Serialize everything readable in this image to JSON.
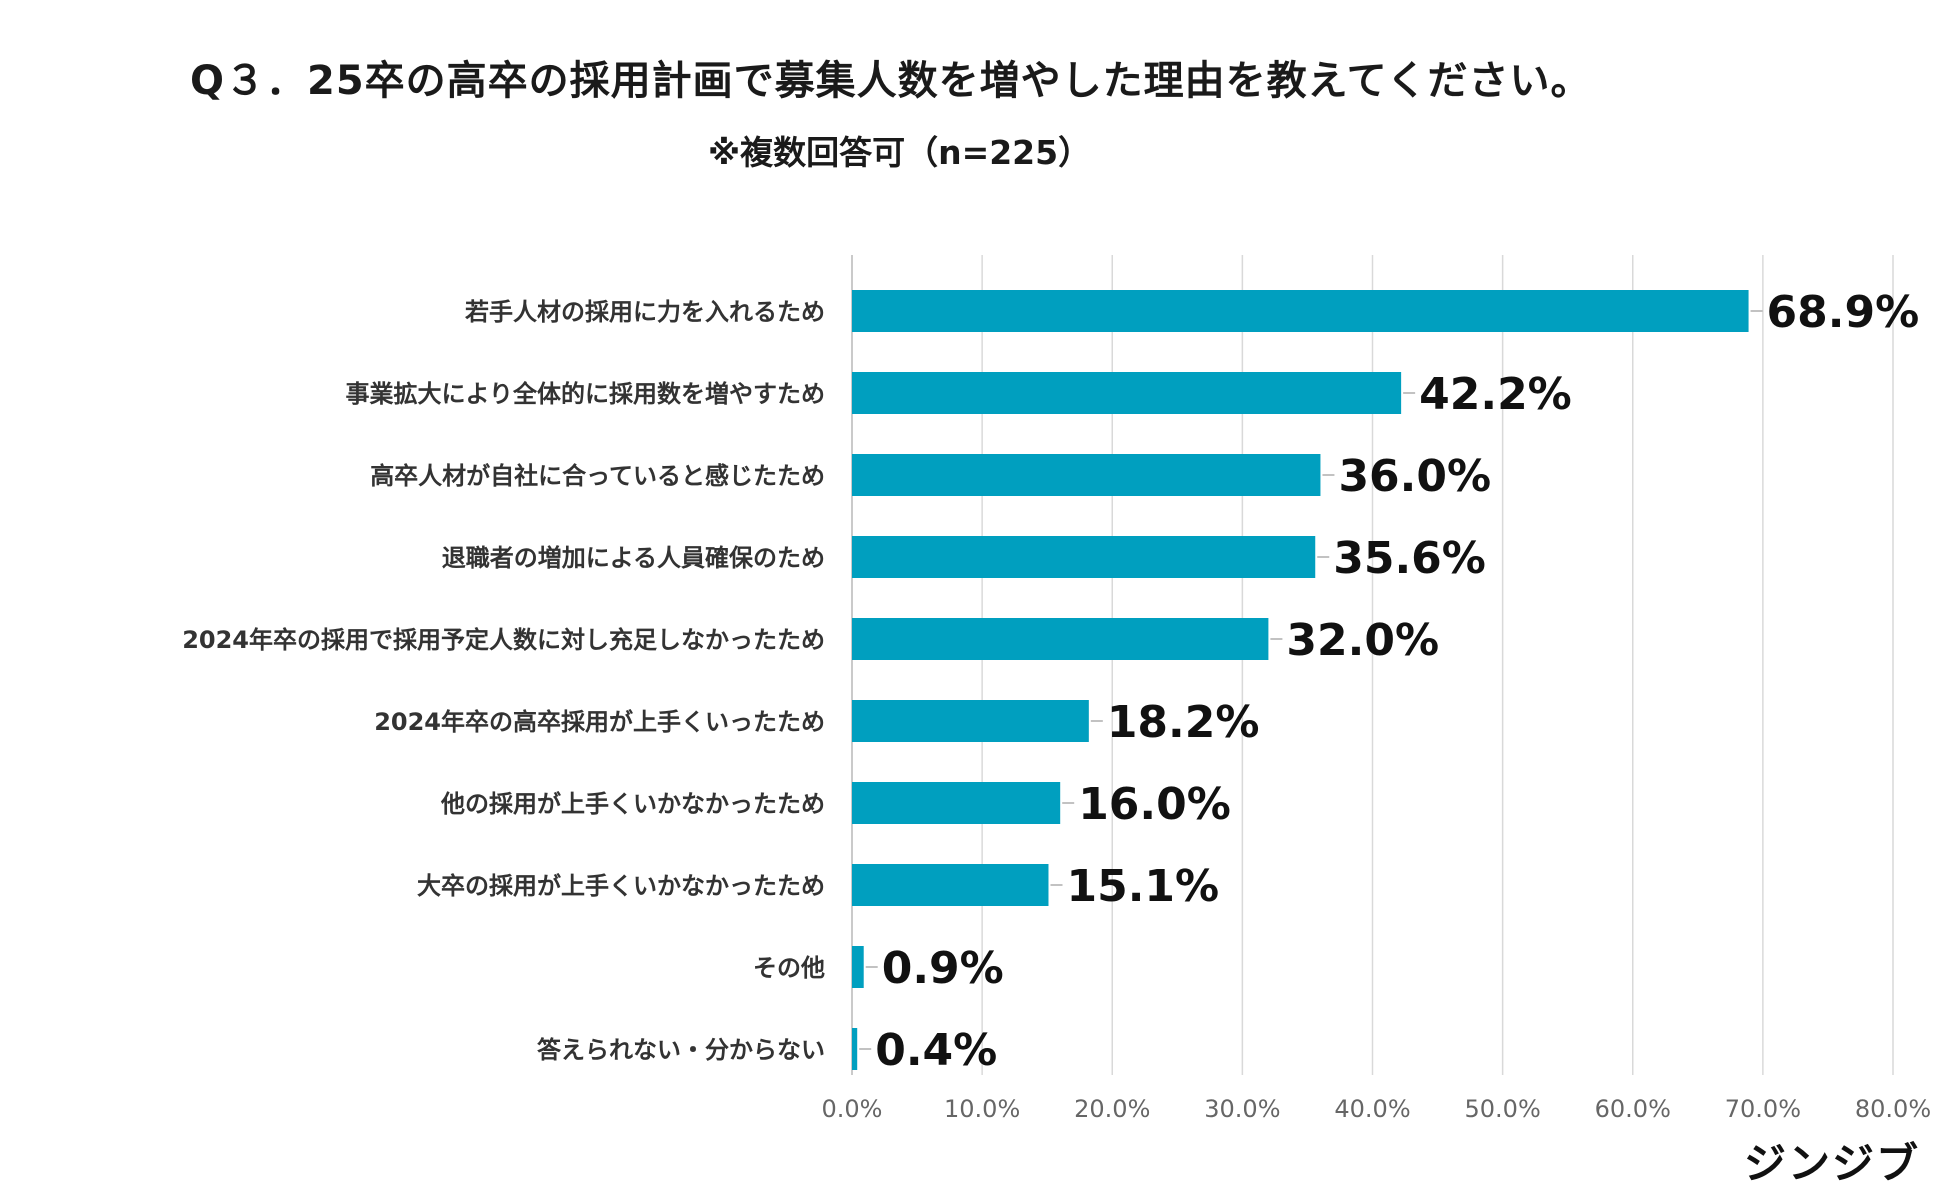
{
  "chart_data": {
    "type": "bar",
    "orientation": "horizontal",
    "title": "Q３．25卒の高卒の採用計画で募集人数を増やした理由を教えてください。",
    "subtitle": "※複数回答可（n=225）",
    "categories": [
      "若手人材の採用に力を入れるため",
      "事業拡大により全体的に採用数を増やすため",
      "高卒人材が自社に合っていると感じたため",
      "退職者の増加による人員確保のため",
      "2024年卒の採用で採用予定人数に対し充足しなかったため",
      "2024年卒の高卒採用が上手くいったため",
      "他の採用が上手くいかなかったため",
      "大卒の採用が上手くいかなかったため",
      "その他",
      "答えられない・分からない"
    ],
    "values": [
      68.9,
      42.2,
      36.0,
      35.6,
      32.0,
      18.2,
      16.0,
      15.1,
      0.9,
      0.4
    ],
    "value_labels": [
      "68.9%",
      "42.2%",
      "36.0%",
      "35.6%",
      "32.0%",
      "18.2%",
      "16.0%",
      "15.1%",
      "0.9%",
      "0.4%"
    ],
    "xlim": [
      0,
      80
    ],
    "xticks": [
      0,
      10,
      20,
      30,
      40,
      50,
      60,
      70,
      80
    ],
    "xtick_labels": [
      "0.0%",
      "10.0%",
      "20.0%",
      "30.0%",
      "40.0%",
      "50.0%",
      "60.0%",
      "70.0%",
      "80.0%"
    ],
    "xlabel": "",
    "ylabel": "",
    "grid": true,
    "bar_color": "#009fbf",
    "grid_color": "#d9d9d9"
  },
  "brand": {
    "logo_text": "ジンジブ"
  }
}
